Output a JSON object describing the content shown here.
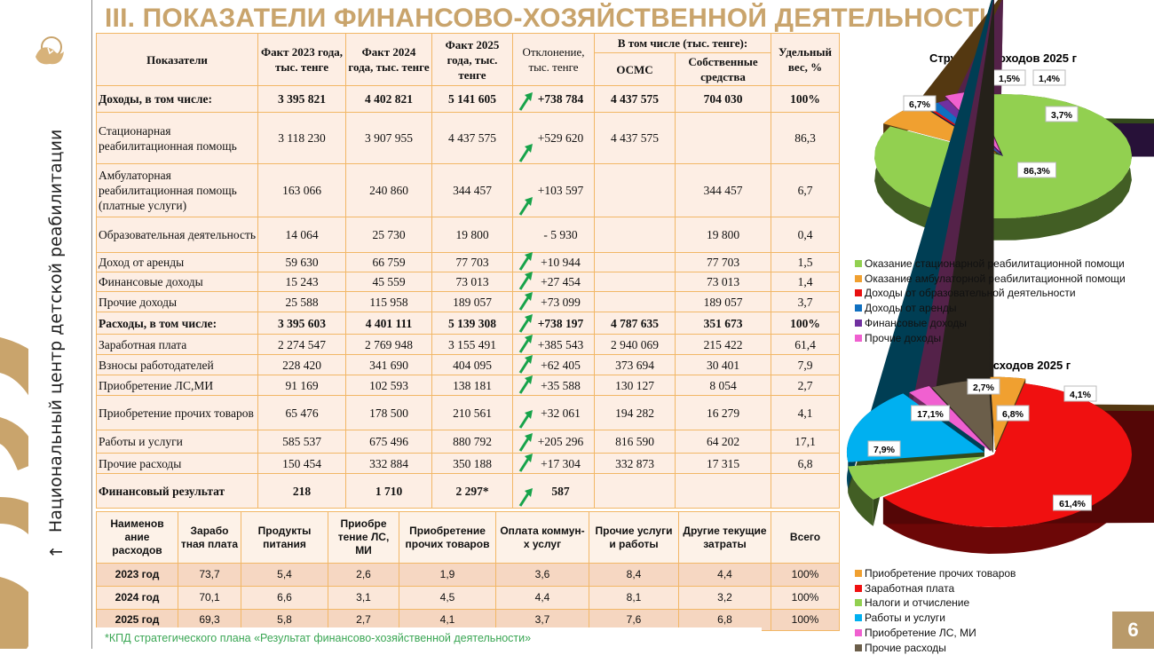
{
  "title": "III. ПОКАЗАТЕЛИ ФИНАНСОВО-ХОЗЯЙСТВЕННОЙ ДЕЯТЕЛЬНОСТИ",
  "sidebar": {
    "org_name": "Национальный центр детской реабилитации",
    "arrow": "→"
  },
  "main_table": {
    "headers": {
      "indicator": "Показатели",
      "fact2023": "Факт 2023 года, тыс. тенге",
      "fact2024": "Факт 2024 года, тыс. тенге",
      "fact2025": "Факт 2025 года, тыс. тенге",
      "deviation": "Отклонение, тыс. тенге",
      "including": "В том числе (тыс. тенге):",
      "osms": "ОСМС",
      "own": "Собственные средства",
      "share": "Удельный вес, %"
    },
    "rows": [
      {
        "name": "Доходы, в том числе:",
        "f2023": "3 395 821",
        "f2024": "4 402 821",
        "f2025": "5 141 605",
        "dev": "+738 784",
        "trend": "up",
        "osms": "4 437 575",
        "own": "704 030",
        "share": "100%",
        "bold": true
      },
      {
        "name": "Стационарная реабилитационная помощь",
        "f2023": "3 118 230",
        "f2024": "3 907 955",
        "f2025": "4 437 575",
        "dev": "+529 620",
        "trend": "up",
        "osms": "4 437 575",
        "own": "",
        "share": "86,3"
      },
      {
        "name": "Амбулаторная реабилитационная помощь (платные услуги)",
        "f2023": "163 066",
        "f2024": "240 860",
        "f2025": "344 457",
        "dev": "+103 597",
        "trend": "up",
        "osms": "",
        "own": "344 457",
        "share": "6,7"
      },
      {
        "name": "Образовательная деятельность",
        "f2023": "14 064",
        "f2024": "25 730",
        "f2025": "19 800",
        "dev": "- 5 930",
        "trend": "",
        "osms": "",
        "own": "19 800",
        "share": "0,4"
      },
      {
        "name": "Доход от аренды",
        "f2023": "59 630",
        "f2024": "66 759",
        "f2025": "77 703",
        "dev": "+10 944",
        "trend": "up",
        "osms": "",
        "own": "77 703",
        "share": "1,5"
      },
      {
        "name": "Финансовые доходы",
        "f2023": "15 243",
        "f2024": "45 559",
        "f2025": "73 013",
        "dev": "+27 454",
        "trend": "up",
        "osms": "",
        "own": "73 013",
        "share": "1,4"
      },
      {
        "name": "Прочие доходы",
        "f2023": "25 588",
        "f2024": "115 958",
        "f2025": "189 057",
        "dev": "+73 099",
        "trend": "up",
        "osms": "",
        "own": "189 057",
        "share": "3,7"
      },
      {
        "name": "Расходы, в том числе:",
        "f2023": "3 395 603",
        "f2024": "4 401 111",
        "f2025": "5 139 308",
        "dev": "+738 197",
        "trend": "up",
        "osms": "4 787 635",
        "own": "351 673",
        "share": "100%",
        "bold": true
      },
      {
        "name": "Заработная плата",
        "f2023": "2 274 547",
        "f2024": "2 769 948",
        "f2025": "3 155 491",
        "dev": "+385 543",
        "trend": "up",
        "osms": "2 940 069",
        "own": "215 422",
        "share": "61,4"
      },
      {
        "name": "Взносы работодателей",
        "f2023": "228 420",
        "f2024": "341 690",
        "f2025": "404 095",
        "dev": "+62 405",
        "trend": "up",
        "osms": "373 694",
        "own": "30 401",
        "share": "7,9"
      },
      {
        "name": "Приобретение ЛС,МИ",
        "f2023": "91 169",
        "f2024": "102 593",
        "f2025": "138 181",
        "dev": "+35 588",
        "trend": "up",
        "osms": "130 127",
        "own": "8 054",
        "share": "2,7"
      },
      {
        "name": "Приобретение прочих товаров",
        "f2023": "65 476",
        "f2024": "178 500",
        "f2025": "210 561",
        "dev": "+32 061",
        "trend": "up",
        "osms": "194 282",
        "own": "16 279",
        "share": "4,1"
      },
      {
        "name": "Работы и услуги",
        "f2023": "585 537",
        "f2024": "675 496",
        "f2025": "880 792",
        "dev": "+205 296",
        "trend": "up",
        "osms": "816 590",
        "own": "64 202",
        "share": "17,1"
      },
      {
        "name": "Прочие расходы",
        "f2023": "150 454",
        "f2024": "332 884",
        "f2025": "350 188",
        "dev": "+17 304",
        "trend": "up",
        "osms": "332 873",
        "own": "17 315",
        "share": "6,8"
      },
      {
        "name": "Финансовый результат",
        "f2023": "218",
        "f2024": "1 710",
        "f2025": "2 297*",
        "dev": "587",
        "trend": "up",
        "osms": "",
        "own": "",
        "share": "",
        "bold": true
      }
    ]
  },
  "expense_table": {
    "headers": [
      "Наименов ание расходов",
      "Зарабо тная плата",
      "Продукты питания",
      "Приобре тение ЛС, МИ",
      "Приобретение прочих товаров",
      "Оплата коммун-х услуг",
      "Прочие услуги и работы",
      "Другие текущие затраты",
      "Всего"
    ],
    "rows": [
      [
        "2023 год",
        "73,7",
        "5,4",
        "2,6",
        "1,9",
        "3,6",
        "8,4",
        "4,4",
        "100%"
      ],
      [
        "2024 год",
        "70,1",
        "6,6",
        "3,1",
        "4,5",
        "4,4",
        "8,1",
        "3,2",
        "100%"
      ],
      [
        "2025 год",
        "69,3",
        "5,8",
        "2,7",
        "4,1",
        "3,7",
        "7,6",
        "6,8",
        "100%"
      ]
    ]
  },
  "footnote": "*КПД стратегического плана «Результат финансово-хозяйственной деятельности»",
  "page_number": "6",
  "chart_data": [
    {
      "type": "pie",
      "title": "Структура доходов 2025 г",
      "legend_position": "bottom",
      "slices": [
        {
          "label": "Оказание стационарной реабилитационной помощи",
          "value": 86.3,
          "display": "86,3%",
          "color": "#92d050"
        },
        {
          "label": "Оказание амбулаторной реабилитационной помощи",
          "value": 6.7,
          "display": "6,7%",
          "color": "#f0a030"
        },
        {
          "label": "Доходы от образовательной деятельности",
          "value": 0.4,
          "display": "",
          "color": "#e81010"
        },
        {
          "label": "Доходы от аренды",
          "value": 1.5,
          "display": "1,5%",
          "color": "#1070c0"
        },
        {
          "label": "Финансовые доходы",
          "value": 1.4,
          "display": "1,4%",
          "color": "#7030a0"
        },
        {
          "label": "Прочие доходы",
          "value": 3.7,
          "display": "3,7%",
          "color": "#f060d0"
        }
      ]
    },
    {
      "type": "pie",
      "title": "Структура расходов 2025 г",
      "legend_position": "bottom",
      "slices": [
        {
          "label": "Приобретение прочих товаров",
          "value": 4.1,
          "display": "4,1%",
          "color": "#f0a030"
        },
        {
          "label": "Заработная плата",
          "value": 61.4,
          "display": "61,4%",
          "color": "#f01010"
        },
        {
          "label": "Налоги и отчисление",
          "value": 7.9,
          "display": "7,9%",
          "color": "#92d050"
        },
        {
          "label": "Работы и услуги",
          "value": 17.1,
          "display": "17,1%",
          "color": "#00b0f0"
        },
        {
          "label": "Приобретение ЛС, МИ",
          "value": 2.7,
          "display": "2,7%",
          "color": "#f060d0"
        },
        {
          "label": "Прочие расходы",
          "value": 6.8,
          "display": "6,8%",
          "color": "#6b5e4a"
        }
      ]
    }
  ]
}
